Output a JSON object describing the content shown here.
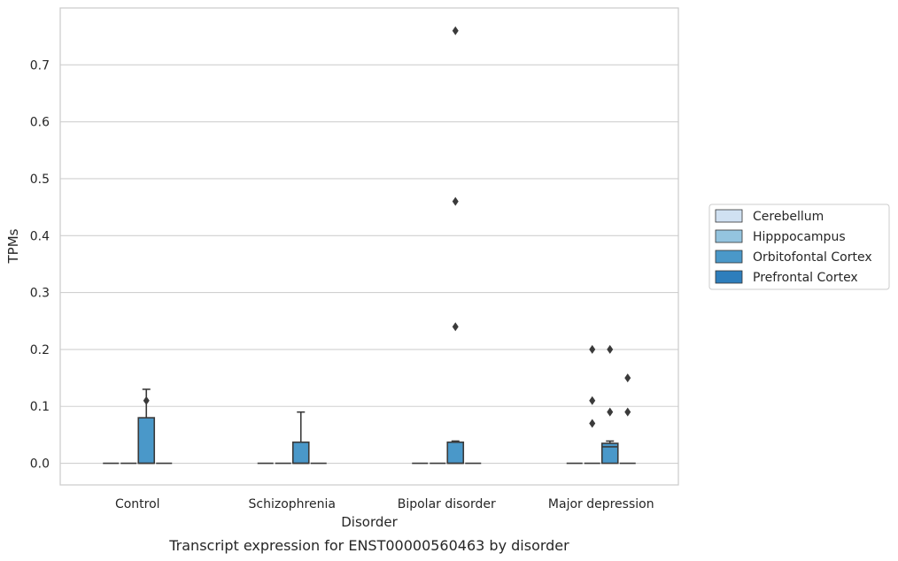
{
  "caption": "Transcript expression for ENST00000560463 by disorder",
  "chart_data": {
    "type": "box",
    "xlabel": "Disorder",
    "ylabel": "TPMs",
    "categories": [
      "Control",
      "Schizophrenia",
      "Bipolar disorder",
      "Major depression"
    ],
    "ylim": [
      -0.038,
      0.8
    ],
    "yticks": [
      0.0,
      0.1,
      0.2,
      0.3,
      0.4,
      0.5,
      0.6,
      0.7
    ],
    "ytick_labels": [
      "0.0",
      "0.1",
      "0.2",
      "0.3",
      "0.4",
      "0.5",
      "0.6",
      "0.7"
    ],
    "grid": "horizontal",
    "legend_position": "right",
    "series": [
      {
        "name": "Cerebellum",
        "color": "#d0e1f2",
        "boxes": [
          {
            "category": "Control",
            "q1": 0,
            "median": 0,
            "q3": 0,
            "whisker_low": 0,
            "whisker_high": 0,
            "outliers": []
          },
          {
            "category": "Schizophrenia",
            "q1": 0,
            "median": 0,
            "q3": 0,
            "whisker_low": 0,
            "whisker_high": 0,
            "outliers": []
          },
          {
            "category": "Bipolar disorder",
            "q1": 0,
            "median": 0,
            "q3": 0,
            "whisker_low": 0,
            "whisker_high": 0,
            "outliers": []
          },
          {
            "category": "Major depression",
            "q1": 0,
            "median": 0,
            "q3": 0,
            "whisker_low": 0,
            "whisker_high": 0,
            "outliers": []
          }
        ]
      },
      {
        "name": "Hipppocampus",
        "color": "#94c4df",
        "boxes": [
          {
            "category": "Control",
            "q1": 0,
            "median": 0,
            "q3": 0,
            "whisker_low": 0,
            "whisker_high": 0,
            "outliers": []
          },
          {
            "category": "Schizophrenia",
            "q1": 0,
            "median": 0,
            "q3": 0,
            "whisker_low": 0,
            "whisker_high": 0,
            "outliers": []
          },
          {
            "category": "Bipolar disorder",
            "q1": 0,
            "median": 0,
            "q3": 0,
            "whisker_low": 0,
            "whisker_high": 0,
            "outliers": []
          },
          {
            "category": "Major depression",
            "q1": 0,
            "median": 0,
            "q3": 0,
            "whisker_low": 0,
            "whisker_high": 0,
            "outliers": []
          }
        ]
      },
      {
        "name": "Orbitofontal Cortex",
        "color": "#4a98c9",
        "boxes": [
          {
            "category": "Control",
            "q1": 0,
            "median": 0,
            "q3": 0.08,
            "whisker_low": 0,
            "whisker_high": 0.13,
            "outliers": [
              0.11
            ]
          },
          {
            "category": "Schizophrenia",
            "q1": 0,
            "median": 0,
            "q3": 0.037,
            "whisker_low": 0,
            "whisker_high": 0.09,
            "outliers": []
          },
          {
            "category": "Bipolar disorder",
            "q1": 0,
            "median": 0,
            "q3": 0.037,
            "whisker_low": 0,
            "whisker_high": 0.039,
            "outliers": [
              0.24,
              0.46,
              0.76
            ]
          },
          {
            "category": "Major depression",
            "q1": 0,
            "median": 0.029,
            "q3": 0.035,
            "whisker_low": 0,
            "whisker_high": 0.039,
            "outliers": [
              0.2,
              0.2,
              0.15,
              0.11,
              0.09,
              0.09,
              0.07
            ]
          }
        ]
      },
      {
        "name": "Prefrontal Cortex",
        "color": "#2e7ebc",
        "boxes": [
          {
            "category": "Control",
            "q1": 0,
            "median": 0,
            "q3": 0,
            "whisker_low": 0,
            "whisker_high": 0,
            "outliers": []
          },
          {
            "category": "Schizophrenia",
            "q1": 0,
            "median": 0,
            "q3": 0,
            "whisker_low": 0,
            "whisker_high": 0,
            "outliers": []
          },
          {
            "category": "Bipolar disorder",
            "q1": 0,
            "median": 0,
            "q3": 0,
            "whisker_low": 0,
            "whisker_high": 0,
            "outliers": []
          },
          {
            "category": "Major depression",
            "q1": 0,
            "median": 0,
            "q3": 0,
            "whisker_low": 0,
            "whisker_high": 0,
            "outliers": []
          }
        ]
      }
    ]
  }
}
